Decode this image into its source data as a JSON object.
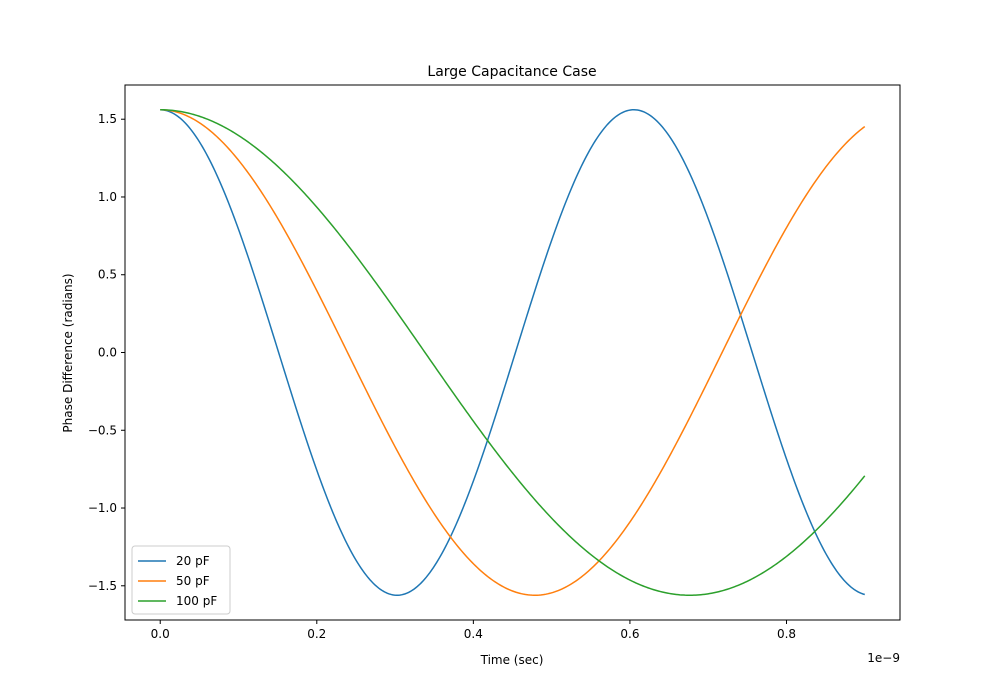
{
  "chart_data": {
    "type": "line",
    "title": "Large Capacitance Case",
    "xlabel": "Time (sec)",
    "ylabel": "Phase Difference (radians)",
    "x_offset_label": "1e−9",
    "xlim": [
      -0.045,
      0.945
    ],
    "ylim": [
      -1.72,
      1.72
    ],
    "x_ticks": [
      0.0,
      0.2,
      0.4,
      0.6,
      0.8
    ],
    "x_tick_labels": [
      "0.0",
      "0.2",
      "0.4",
      "0.6",
      "0.8"
    ],
    "y_ticks": [
      1.5,
      1.0,
      0.5,
      0.0,
      -0.5,
      -1.0,
      -1.5
    ],
    "y_tick_labels": [
      "1.5",
      "1.0",
      "0.5",
      "0.0",
      "−0.5",
      "−1.0",
      "−1.5"
    ],
    "x_range": [
      0.0,
      0.9
    ],
    "grid": false,
    "legend": "lower-left",
    "series": [
      {
        "name": "20 pF",
        "color": "#1f77b4",
        "amplitude": 1.5608,
        "period": 0.605
      },
      {
        "name": "50 pF",
        "color": "#ff7f0e",
        "amplitude": 1.5608,
        "period": 0.957
      },
      {
        "name": "100 pF",
        "color": "#2ca02c",
        "amplitude": 1.5608,
        "period": 1.353
      }
    ]
  }
}
